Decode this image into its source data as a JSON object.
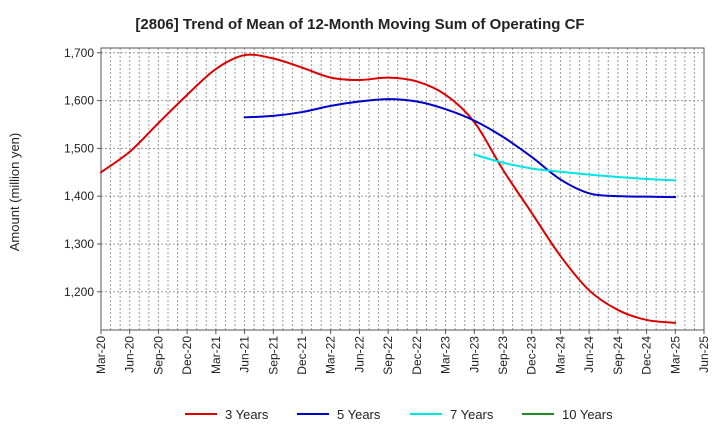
{
  "chart_data": {
    "type": "line",
    "title": "[2806]  Trend of Mean of 12-Month Moving Sum of Operating CF",
    "xlabel": "",
    "ylabel": "Amount (million yen)",
    "ylim": [
      1120,
      1710
    ],
    "yticks": [
      1200,
      1300,
      1400,
      1500,
      1600,
      1700
    ],
    "ytick_labels": [
      "1,200",
      "1,300",
      "1,400",
      "1,500",
      "1,600",
      "1,700"
    ],
    "x_tick_labels": [
      "Mar-20",
      "Jun-20",
      "Sep-20",
      "Dec-20",
      "Mar-21",
      "Jun-21",
      "Sep-21",
      "Dec-21",
      "Mar-22",
      "Jun-22",
      "Sep-22",
      "Dec-22",
      "Mar-23",
      "Jun-23",
      "Sep-23",
      "Dec-23",
      "Mar-24",
      "Jun-24",
      "Sep-24",
      "Dec-24",
      "Mar-25",
      "Jun-25"
    ],
    "x_unit": "month index from Mar-20",
    "xlim": [
      0,
      63
    ],
    "grid": true,
    "legend_position": "bottom",
    "series": [
      {
        "name": "3 Years",
        "color": "#dd0000",
        "x": [
          0,
          3,
          6,
          9,
          12,
          15,
          18,
          21,
          24,
          27,
          30,
          33,
          36,
          39,
          42,
          45,
          48,
          51,
          54,
          57,
          60
        ],
        "values": [
          1450,
          1493,
          1553,
          1612,
          1666,
          1695,
          1688,
          1669,
          1648,
          1643,
          1648,
          1640,
          1612,
          1555,
          1455,
          1365,
          1275,
          1203,
          1162,
          1141,
          1135
        ]
      },
      {
        "name": "5 Years",
        "color": "#0000cc",
        "x": [
          15,
          18,
          21,
          24,
          27,
          30,
          33,
          36,
          39,
          42,
          45,
          48,
          51,
          54,
          57,
          60
        ],
        "values": [
          1565,
          1568,
          1576,
          1589,
          1598,
          1603,
          1598,
          1582,
          1558,
          1524,
          1482,
          1435,
          1406,
          1400,
          1399,
          1398
        ]
      },
      {
        "name": "7 Years",
        "color": "#00e5e5",
        "x": [
          39,
          42,
          45,
          48,
          51,
          54,
          57,
          60
        ],
        "values": [
          1487,
          1470,
          1458,
          1451,
          1445,
          1440,
          1436,
          1433
        ]
      },
      {
        "name": "10 Years",
        "color": "#228b22",
        "x": [],
        "values": []
      }
    ]
  }
}
